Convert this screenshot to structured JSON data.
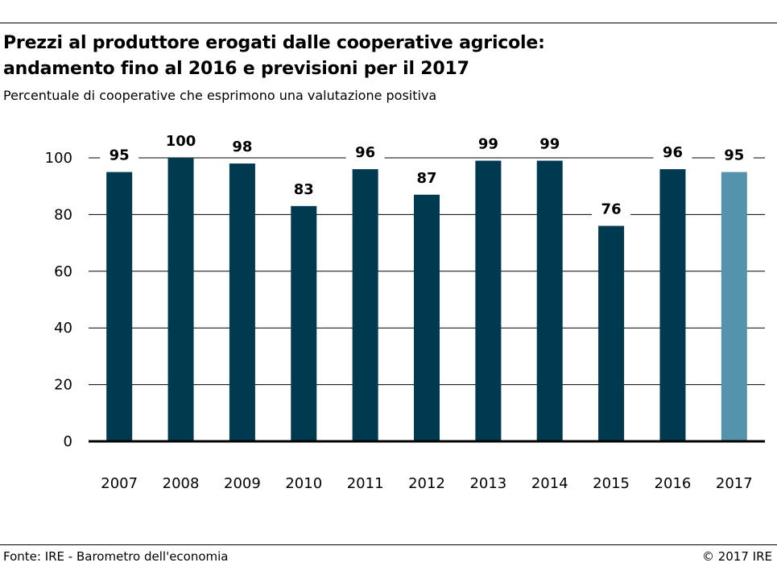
{
  "header": {
    "title_line1": "Prezzi al produttore erogati dalle cooperative agricole:",
    "title_line2": "andamento fino al 2016 e previsioni per il 2017",
    "subtitle": "Percentuale di cooperative che esprimono una valutazione positiva"
  },
  "footer": {
    "source": "Fonte: IRE - Barometro dell'economia",
    "copyright": "© 2017 IRE"
  },
  "colors": {
    "bar": "#003a50",
    "bar_forecast": "#5593ad",
    "grid": "#000000"
  },
  "chart_data": {
    "type": "bar",
    "title": "Prezzi al produttore erogati dalle cooperative agricole: andamento fino al 2016 e previsioni per il 2017",
    "ylabel": "Percentuale di cooperative che esprimono una valutazione positiva",
    "xlabel": "",
    "categories": [
      "2007",
      "2008",
      "2009",
      "2010",
      "2011",
      "2012",
      "2013",
      "2014",
      "2015",
      "2016",
      "2017"
    ],
    "values": [
      95,
      100,
      98,
      83,
      96,
      87,
      99,
      99,
      76,
      96,
      95
    ],
    "forecast_categories": [
      "2017"
    ],
    "ylim": [
      0,
      100
    ],
    "yticks": [
      0,
      20,
      40,
      60,
      80,
      100
    ],
    "grid": true,
    "data_labels": true
  }
}
